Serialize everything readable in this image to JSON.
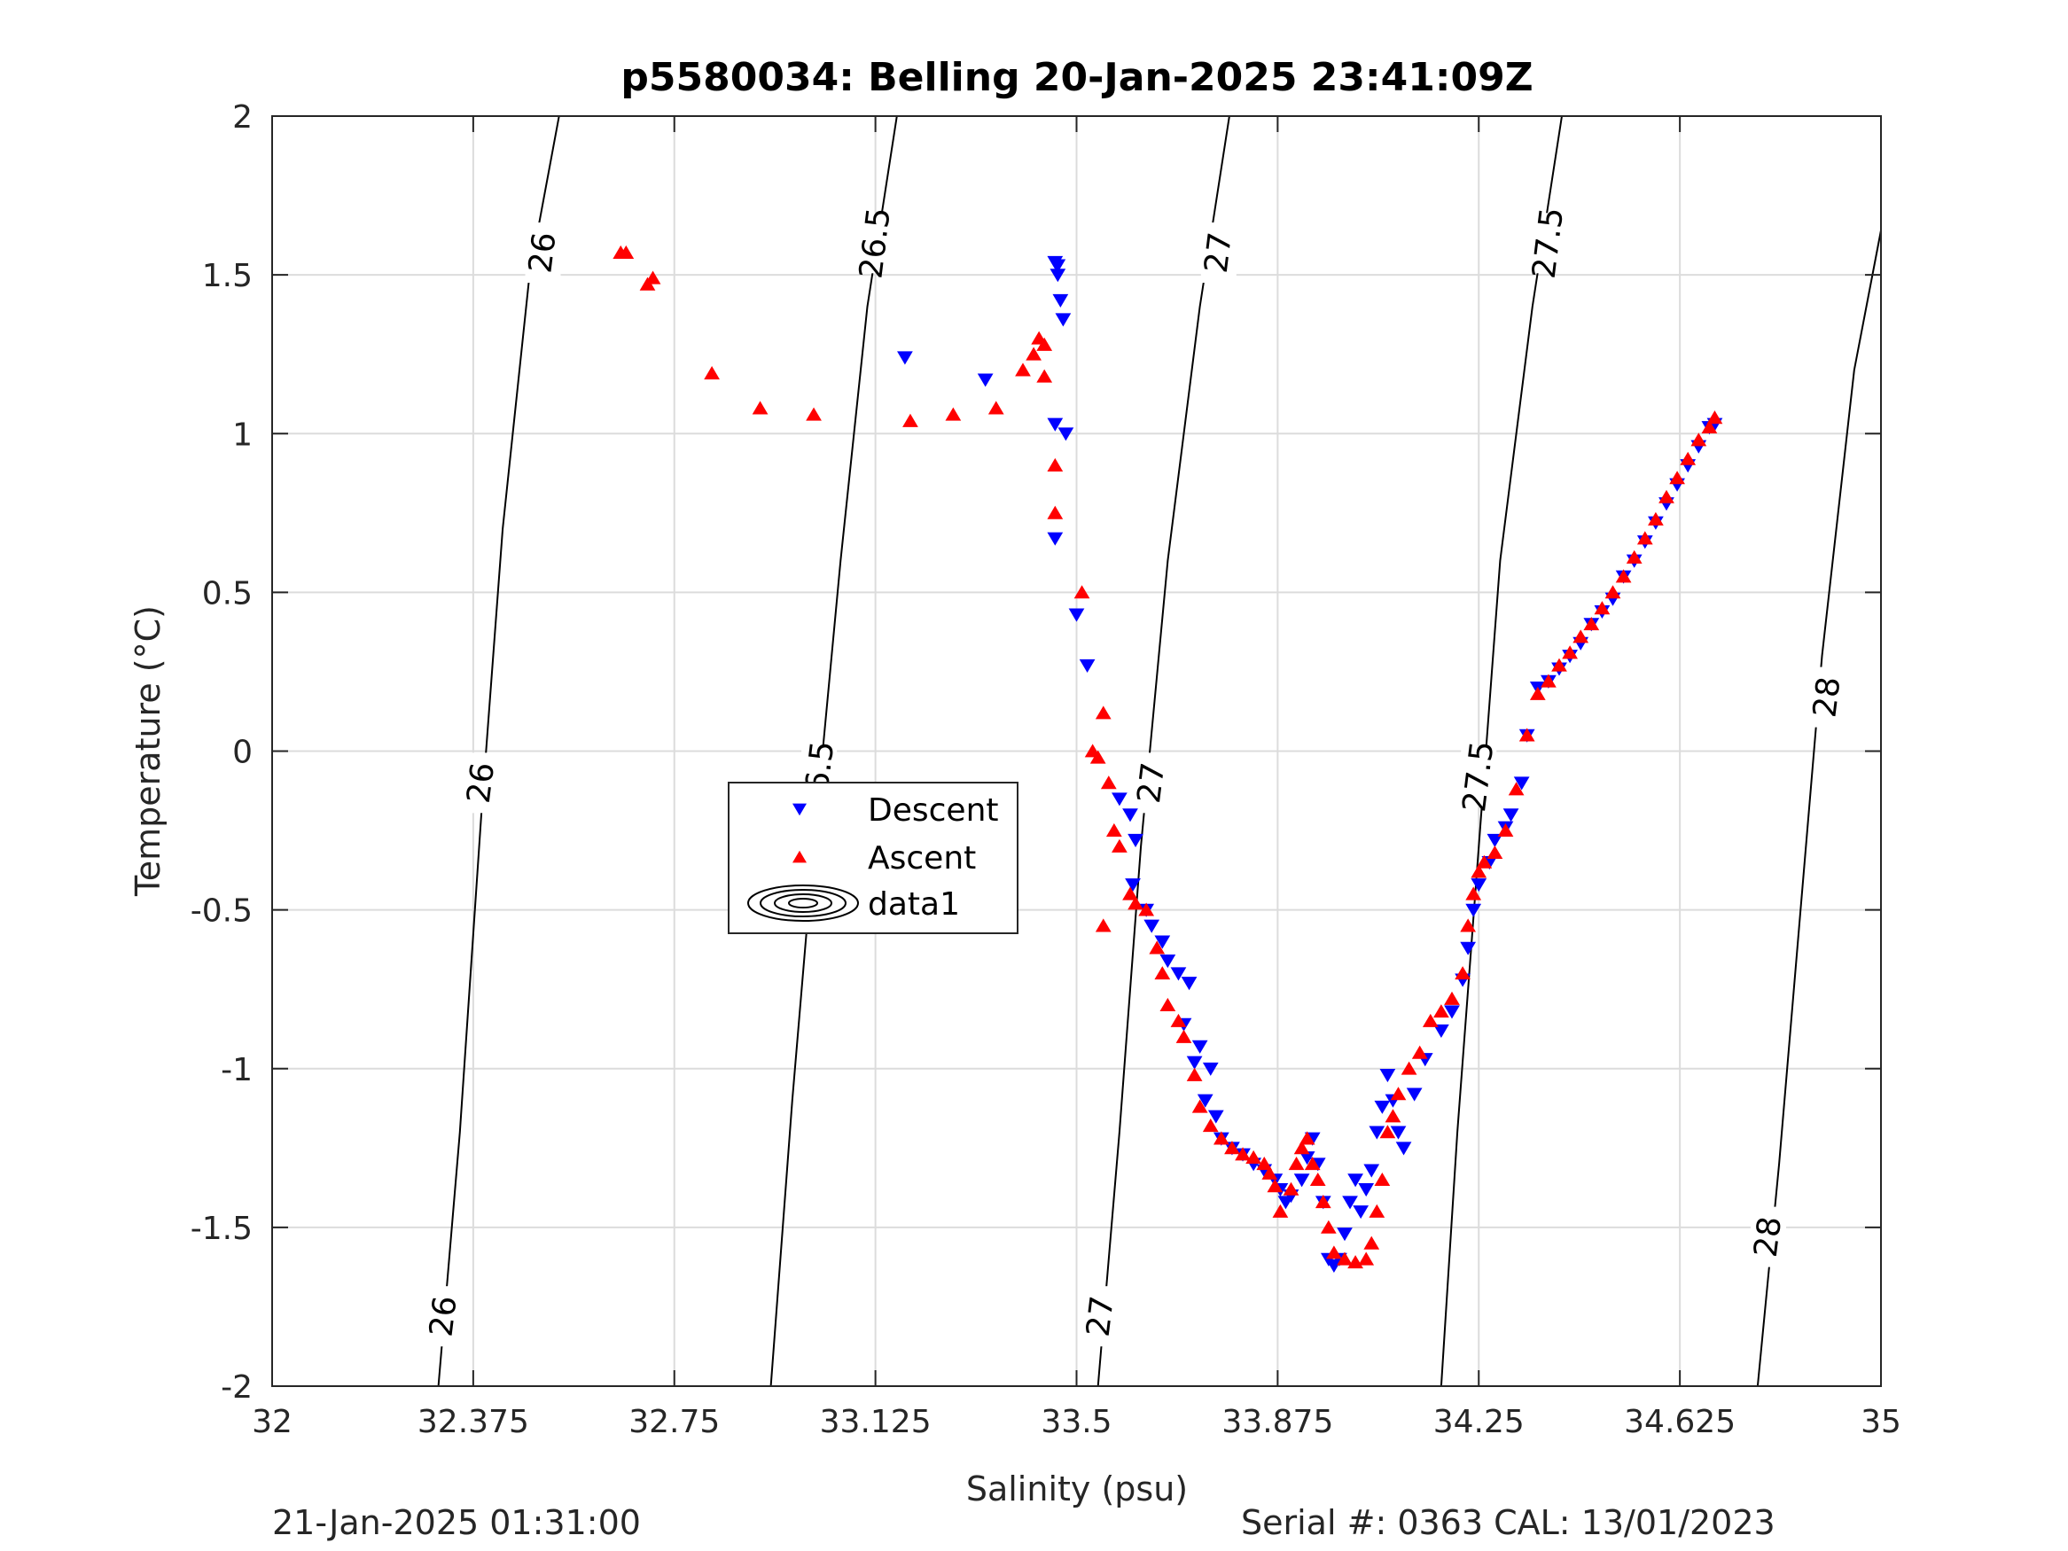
{
  "chart_data": {
    "type": "scatter",
    "title": "p5580034: Belling 20-Jan-2025 23:41:09Z",
    "xlabel": "Salinity (psu)",
    "ylabel": "Temperature (°C)",
    "xlim": [
      32,
      35
    ],
    "ylim": [
      -2,
      2
    ],
    "xticks": [
      "32",
      "32.375",
      "32.75",
      "33.125",
      "33.5",
      "33.875",
      "34.25",
      "34.625",
      "35"
    ],
    "yticks": [
      "2",
      "1.5",
      "1",
      "0.5",
      "0",
      "-0.5",
      "-1",
      "-1.5",
      "-2"
    ],
    "grid": true,
    "legend": "center-left",
    "legend_entries": [
      "Descent",
      "Ascent",
      "data1"
    ],
    "density_contours": [
      {
        "level": "26",
        "points": [
          [
            32.31,
            -2
          ],
          [
            32.35,
            -1.2
          ],
          [
            32.39,
            -0.2
          ],
          [
            32.43,
            0.7
          ],
          [
            32.48,
            1.5
          ],
          [
            32.535,
            2
          ]
        ]
      },
      {
        "level": "26.5",
        "points": [
          [
            32.93,
            -2
          ],
          [
            32.97,
            -1.1
          ],
          [
            33.01,
            -0.3
          ],
          [
            33.06,
            0.6
          ],
          [
            33.11,
            1.4
          ],
          [
            33.165,
            2
          ]
        ]
      },
      {
        "level": "27",
        "points": [
          [
            33.54,
            -2
          ],
          [
            33.58,
            -1.2
          ],
          [
            33.62,
            -0.3
          ],
          [
            33.67,
            0.6
          ],
          [
            33.73,
            1.4
          ],
          [
            33.785,
            2
          ]
        ]
      },
      {
        "level": "27.5",
        "points": [
          [
            34.18,
            -2
          ],
          [
            34.21,
            -1.2
          ],
          [
            34.25,
            -0.3
          ],
          [
            34.29,
            0.6
          ],
          [
            34.35,
            1.4
          ],
          [
            34.405,
            2
          ]
        ]
      },
      {
        "level": "28",
        "points": [
          [
            34.77,
            -2
          ],
          [
            34.81,
            -1.3
          ],
          [
            34.85,
            -0.5
          ],
          [
            34.89,
            0.3
          ],
          [
            34.95,
            1.2
          ],
          [
            35,
            1.64
          ]
        ]
      }
    ],
    "contour_labels": [
      {
        "text": "26",
        "x": 32.505,
        "y": 1.57
      },
      {
        "text": "26",
        "x": 32.39,
        "y": -0.1
      },
      {
        "text": "26",
        "x": 32.32,
        "y": -1.78
      },
      {
        "text": "26.5",
        "x": 33.125,
        "y": 1.6
      },
      {
        "text": "26.5",
        "x": 33.02,
        "y": -0.08
      },
      {
        "text": "27",
        "x": 33.765,
        "y": 1.57
      },
      {
        "text": "27",
        "x": 33.64,
        "y": -0.1
      },
      {
        "text": "27",
        "x": 33.545,
        "y": -1.78
      },
      {
        "text": "27.5",
        "x": 34.38,
        "y": 1.6
      },
      {
        "text": "27.5",
        "x": 34.25,
        "y": -0.08
      },
      {
        "text": "28",
        "x": 34.9,
        "y": 0.17
      },
      {
        "text": "28",
        "x": 34.79,
        "y": -1.53
      }
    ],
    "series": [
      {
        "name": "Descent",
        "color": "#0000ff",
        "marker": "triangle-down",
        "points": [
          [
            33.46,
            1.54
          ],
          [
            33.465,
            1.53
          ],
          [
            33.465,
            1.5
          ],
          [
            33.47,
            1.42
          ],
          [
            33.475,
            1.36
          ],
          [
            33.18,
            1.24
          ],
          [
            33.33,
            1.17
          ],
          [
            33.46,
            1.03
          ],
          [
            33.48,
            1.0
          ],
          [
            33.46,
            0.67
          ],
          [
            33.5,
            0.43
          ],
          [
            33.52,
            0.27
          ],
          [
            33.58,
            -0.15
          ],
          [
            33.6,
            -0.2
          ],
          [
            33.61,
            -0.28
          ],
          [
            33.605,
            -0.42
          ],
          [
            33.63,
            -0.5
          ],
          [
            33.64,
            -0.55
          ],
          [
            33.66,
            -0.6
          ],
          [
            33.67,
            -0.66
          ],
          [
            33.69,
            -0.7
          ],
          [
            33.71,
            -0.73
          ],
          [
            33.7,
            -0.86
          ],
          [
            33.73,
            -0.93
          ],
          [
            33.72,
            -0.98
          ],
          [
            33.75,
            -1.0
          ],
          [
            33.74,
            -1.1
          ],
          [
            33.76,
            -1.15
          ],
          [
            33.77,
            -1.22
          ],
          [
            33.79,
            -1.25
          ],
          [
            33.81,
            -1.27
          ],
          [
            33.83,
            -1.3
          ],
          [
            33.85,
            -1.32
          ],
          [
            33.87,
            -1.35
          ],
          [
            33.88,
            -1.38
          ],
          [
            33.89,
            -1.42
          ],
          [
            33.9,
            -1.4
          ],
          [
            33.92,
            -1.35
          ],
          [
            33.93,
            -1.28
          ],
          [
            33.94,
            -1.22
          ],
          [
            33.95,
            -1.3
          ],
          [
            33.96,
            -1.42
          ],
          [
            33.97,
            -1.6
          ],
          [
            33.98,
            -1.62
          ],
          [
            33.99,
            -1.6
          ],
          [
            34.0,
            -1.52
          ],
          [
            34.01,
            -1.42
          ],
          [
            34.02,
            -1.35
          ],
          [
            34.03,
            -1.45
          ],
          [
            34.04,
            -1.38
          ],
          [
            34.05,
            -1.32
          ],
          [
            34.06,
            -1.2
          ],
          [
            34.07,
            -1.12
          ],
          [
            34.08,
            -1.02
          ],
          [
            34.09,
            -1.1
          ],
          [
            34.1,
            -1.2
          ],
          [
            34.11,
            -1.25
          ],
          [
            34.13,
            -1.08
          ],
          [
            34.15,
            -0.97
          ],
          [
            34.18,
            -0.88
          ],
          [
            34.2,
            -0.82
          ],
          [
            34.22,
            -0.72
          ],
          [
            34.23,
            -0.62
          ],
          [
            34.24,
            -0.5
          ],
          [
            34.25,
            -0.42
          ],
          [
            34.27,
            -0.35
          ],
          [
            34.28,
            -0.28
          ],
          [
            34.3,
            -0.24
          ],
          [
            34.31,
            -0.2
          ],
          [
            34.33,
            -0.1
          ],
          [
            34.34,
            0.05
          ],
          [
            34.36,
            0.2
          ],
          [
            34.38,
            0.22
          ],
          [
            34.4,
            0.26
          ],
          [
            34.42,
            0.3
          ],
          [
            34.44,
            0.34
          ],
          [
            34.46,
            0.4
          ],
          [
            34.48,
            0.44
          ],
          [
            34.5,
            0.48
          ],
          [
            34.52,
            0.55
          ],
          [
            34.54,
            0.6
          ],
          [
            34.56,
            0.66
          ],
          [
            34.58,
            0.72
          ],
          [
            34.6,
            0.78
          ],
          [
            34.62,
            0.84
          ],
          [
            34.64,
            0.9
          ],
          [
            34.66,
            0.96
          ],
          [
            34.68,
            1.02
          ],
          [
            34.69,
            1.03
          ]
        ]
      },
      {
        "name": "Ascent",
        "color": "#ff0000",
        "marker": "triangle-up",
        "points": [
          [
            32.65,
            1.57
          ],
          [
            32.66,
            1.57
          ],
          [
            32.7,
            1.47
          ],
          [
            32.71,
            1.49
          ],
          [
            32.82,
            1.19
          ],
          [
            32.91,
            1.08
          ],
          [
            33.01,
            1.06
          ],
          [
            33.19,
            1.04
          ],
          [
            33.27,
            1.06
          ],
          [
            33.35,
            1.08
          ],
          [
            33.4,
            1.2
          ],
          [
            33.42,
            1.25
          ],
          [
            33.43,
            1.3
          ],
          [
            33.44,
            1.28
          ],
          [
            33.44,
            1.18
          ],
          [
            33.46,
            0.9
          ],
          [
            33.46,
            0.75
          ],
          [
            33.51,
            0.5
          ],
          [
            33.55,
            0.12
          ],
          [
            33.53,
            0.0
          ],
          [
            33.54,
            -0.02
          ],
          [
            33.56,
            -0.1
          ],
          [
            33.57,
            -0.25
          ],
          [
            33.58,
            -0.3
          ],
          [
            33.55,
            -0.55
          ],
          [
            33.6,
            -0.45
          ],
          [
            33.61,
            -0.48
          ],
          [
            33.63,
            -0.5
          ],
          [
            33.65,
            -0.62
          ],
          [
            33.66,
            -0.7
          ],
          [
            33.67,
            -0.8
          ],
          [
            33.69,
            -0.85
          ],
          [
            33.7,
            -0.9
          ],
          [
            33.72,
            -1.02
          ],
          [
            33.73,
            -1.12
          ],
          [
            33.75,
            -1.18
          ],
          [
            33.77,
            -1.22
          ],
          [
            33.79,
            -1.25
          ],
          [
            33.81,
            -1.27
          ],
          [
            33.83,
            -1.28
          ],
          [
            33.85,
            -1.3
          ],
          [
            33.86,
            -1.33
          ],
          [
            33.87,
            -1.37
          ],
          [
            33.88,
            -1.45
          ],
          [
            33.9,
            -1.38
          ],
          [
            33.91,
            -1.3
          ],
          [
            33.92,
            -1.25
          ],
          [
            33.93,
            -1.22
          ],
          [
            33.94,
            -1.3
          ],
          [
            33.95,
            -1.35
          ],
          [
            33.96,
            -1.42
          ],
          [
            33.97,
            -1.5
          ],
          [
            33.98,
            -1.58
          ],
          [
            34.0,
            -1.6
          ],
          [
            34.02,
            -1.61
          ],
          [
            34.04,
            -1.6
          ],
          [
            34.05,
            -1.55
          ],
          [
            34.06,
            -1.45
          ],
          [
            34.07,
            -1.35
          ],
          [
            34.08,
            -1.2
          ],
          [
            34.09,
            -1.15
          ],
          [
            34.1,
            -1.08
          ],
          [
            34.12,
            -1.0
          ],
          [
            34.14,
            -0.95
          ],
          [
            34.16,
            -0.85
          ],
          [
            34.18,
            -0.82
          ],
          [
            34.2,
            -0.78
          ],
          [
            34.22,
            -0.7
          ],
          [
            34.23,
            -0.55
          ],
          [
            34.24,
            -0.45
          ],
          [
            34.25,
            -0.38
          ],
          [
            34.26,
            -0.35
          ],
          [
            34.28,
            -0.32
          ],
          [
            34.3,
            -0.25
          ],
          [
            34.32,
            -0.12
          ],
          [
            34.34,
            0.05
          ],
          [
            34.36,
            0.18
          ],
          [
            34.38,
            0.22
          ],
          [
            34.4,
            0.27
          ],
          [
            34.42,
            0.31
          ],
          [
            34.44,
            0.36
          ],
          [
            34.46,
            0.4
          ],
          [
            34.48,
            0.45
          ],
          [
            34.5,
            0.5
          ],
          [
            34.52,
            0.55
          ],
          [
            34.54,
            0.61
          ],
          [
            34.56,
            0.67
          ],
          [
            34.58,
            0.73
          ],
          [
            34.6,
            0.8
          ],
          [
            34.62,
            0.86
          ],
          [
            34.64,
            0.92
          ],
          [
            34.66,
            0.98
          ],
          [
            34.68,
            1.02
          ],
          [
            34.69,
            1.05
          ]
        ]
      }
    ]
  },
  "footer": {
    "left": "21-Jan-2025 01:31:00",
    "right": "Serial #: 0363  CAL: 13/01/2023"
  }
}
